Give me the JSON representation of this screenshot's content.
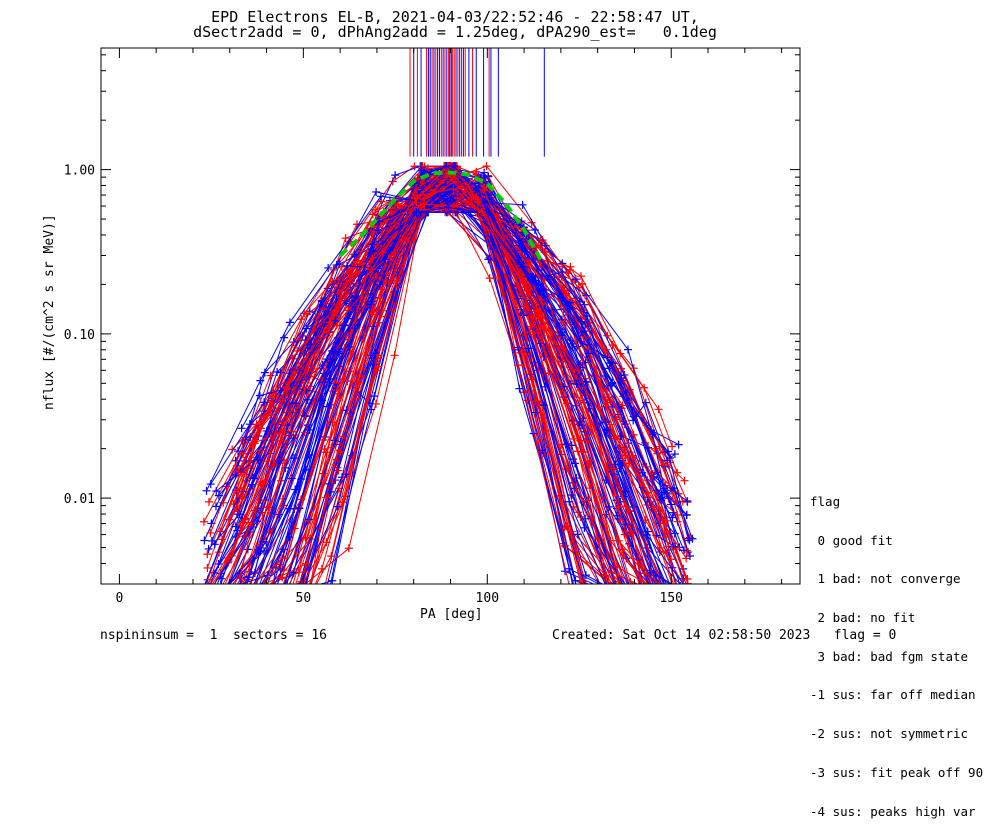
{
  "chart_data": {
    "type": "line",
    "title": "EPD Electrons EL-B, 2021-04-03/22:52:46 - 22:58:47 UT,",
    "subtitle": "dSectr2add = 0, dPhAng2add = 1.25deg, dPA290_est=   0.1deg",
    "xlabel": "PA [deg]",
    "ylabel": "nflux [#/(cm^2 s sr MeV)]",
    "xlim": [
      -5,
      185
    ],
    "ylim": [
      0.003,
      5.5
    ],
    "yscale": "log",
    "x_ticks": [
      0,
      50,
      100,
      150
    ],
    "y_ticks": [
      {
        "value": 0.01,
        "label": "0.01"
      },
      {
        "value": 0.1,
        "label": "0.10"
      },
      {
        "value": 1.0,
        "label": "1.00"
      }
    ],
    "series_colors": {
      "red": "#ff0000",
      "blue": "#0000ff",
      "fit": "#00cc00"
    },
    "fit_curve": {
      "x": [
        60,
        65,
        70,
        75,
        80,
        85,
        90,
        95,
        100,
        105,
        110,
        115
      ],
      "y": [
        0.3,
        0.38,
        0.5,
        0.66,
        0.85,
        0.95,
        0.96,
        0.93,
        0.82,
        0.62,
        0.43,
        0.27
      ]
    },
    "peak_markers": {
      "red": [
        79,
        81,
        83.5,
        85,
        86,
        87.5,
        88.5,
        89.5,
        90.5,
        91,
        92,
        93,
        94,
        96,
        100.5
      ],
      "blue": [
        80,
        82,
        84,
        84.5,
        85.5,
        86.5,
        87,
        88,
        89,
        89.8,
        90.2,
        91.5,
        92.5,
        93.5,
        95,
        97,
        99,
        101,
        103,
        115.5
      ]
    },
    "note": "Dense overlay of many red and blue PA-distribution traces; envelope peaks near 0.9-1.0 at PA~80-100 and falls to ~0.003-0.2 at PA 25-155."
  },
  "legend": {
    "title": "flag",
    "items": [
      " 0 good fit",
      " 1 bad: not converge",
      " 2 bad: no fit",
      " 3 bad: bad fgm state",
      "-1 sus: far off median",
      "-2 sus: not symmetric",
      "-3 sus: fit peak off 90",
      "-4 sus: peaks high var"
    ]
  },
  "footer": {
    "left": "nspininsum =  1  sectors = 16",
    "right": "Created: Sat Oct 14 02:58:50 2023   flag = 0"
  }
}
